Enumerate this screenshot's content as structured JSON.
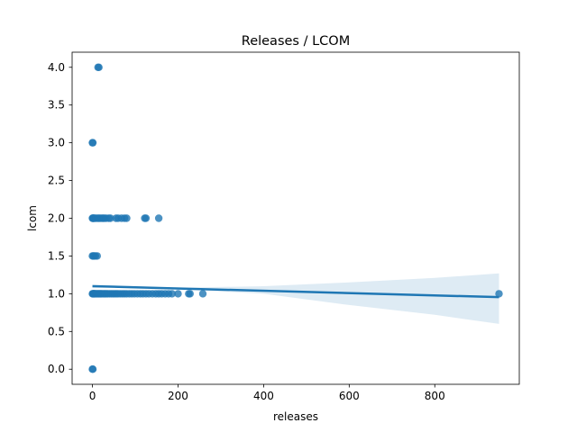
{
  "chart_data": {
    "type": "scatter",
    "title": "Releases / LCOM",
    "xlabel": "releases",
    "ylabel": "lcom",
    "xlim": [
      -47.5,
      997.5
    ],
    "ylim": [
      -0.2,
      4.2
    ],
    "xticks": [
      0,
      200,
      400,
      600,
      800
    ],
    "xtick_labels": [
      "0",
      "200",
      "400",
      "600",
      "800"
    ],
    "yticks": [
      0.0,
      0.5,
      1.0,
      1.5,
      2.0,
      2.5,
      3.0,
      3.5,
      4.0
    ],
    "ytick_labels": [
      "0.0",
      "0.5",
      "1.0",
      "1.5",
      "2.0",
      "2.5",
      "3.0",
      "3.5",
      "4.0"
    ],
    "grid": false,
    "color": "#1f77b4",
    "points": [
      [
        0,
        0
      ],
      [
        1,
        0
      ],
      [
        0,
        1
      ],
      [
        1,
        1
      ],
      [
        2,
        1
      ],
      [
        3,
        1
      ],
      [
        4,
        1
      ],
      [
        5,
        1
      ],
      [
        6,
        1
      ],
      [
        8,
        1
      ],
      [
        10,
        1
      ],
      [
        12,
        1
      ],
      [
        14,
        1
      ],
      [
        16,
        1
      ],
      [
        18,
        1
      ],
      [
        20,
        1
      ],
      [
        22,
        1
      ],
      [
        25,
        1
      ],
      [
        28,
        1
      ],
      [
        30,
        1
      ],
      [
        33,
        1
      ],
      [
        36,
        1
      ],
      [
        40,
        1
      ],
      [
        44,
        1
      ],
      [
        48,
        1
      ],
      [
        52,
        1
      ],
      [
        56,
        1
      ],
      [
        60,
        1
      ],
      [
        65,
        1
      ],
      [
        70,
        1
      ],
      [
        75,
        1
      ],
      [
        80,
        1
      ],
      [
        86,
        1
      ],
      [
        92,
        1
      ],
      [
        98,
        1
      ],
      [
        105,
        1
      ],
      [
        112,
        1
      ],
      [
        118,
        1
      ],
      [
        125,
        1
      ],
      [
        132,
        1
      ],
      [
        140,
        1
      ],
      [
        148,
        1
      ],
      [
        155,
        1
      ],
      [
        162,
        1
      ],
      [
        170,
        1
      ],
      [
        178,
        1
      ],
      [
        186,
        1
      ],
      [
        200,
        1
      ],
      [
        225,
        1
      ],
      [
        228,
        1
      ],
      [
        258,
        1
      ],
      [
        950,
        1
      ],
      [
        0,
        1.5
      ],
      [
        2,
        1.5
      ],
      [
        4,
        1.5
      ],
      [
        7,
        1.5
      ],
      [
        11,
        1.5
      ],
      [
        0,
        2
      ],
      [
        1,
        2
      ],
      [
        2,
        2
      ],
      [
        3,
        2
      ],
      [
        5,
        2
      ],
      [
        8,
        2
      ],
      [
        12,
        2
      ],
      [
        15,
        2
      ],
      [
        18,
        2
      ],
      [
        22,
        2
      ],
      [
        25,
        2
      ],
      [
        28,
        2
      ],
      [
        32,
        2
      ],
      [
        38,
        2
      ],
      [
        42,
        2
      ],
      [
        55,
        2
      ],
      [
        60,
        2
      ],
      [
        68,
        2
      ],
      [
        75,
        2
      ],
      [
        80,
        2
      ],
      [
        122,
        2
      ],
      [
        125,
        2
      ],
      [
        155,
        2
      ],
      [
        0,
        3
      ],
      [
        1,
        3
      ],
      [
        13,
        4
      ],
      [
        15,
        4
      ]
    ],
    "regression": {
      "line": [
        [
          0,
          1.1
        ],
        [
          950,
          0.955
        ]
      ],
      "ci_upper": [
        [
          0,
          1.12
        ],
        [
          100,
          1.1
        ],
        [
          200,
          1.08
        ],
        [
          400,
          1.1
        ],
        [
          600,
          1.15
        ],
        [
          800,
          1.21
        ],
        [
          950,
          1.27
        ]
      ],
      "ci_lower": [
        [
          0,
          1.08
        ],
        [
          100,
          1.085
        ],
        [
          200,
          1.06
        ],
        [
          400,
          1.0
        ],
        [
          600,
          0.85
        ],
        [
          800,
          0.72
        ],
        [
          950,
          0.6
        ]
      ]
    }
  }
}
